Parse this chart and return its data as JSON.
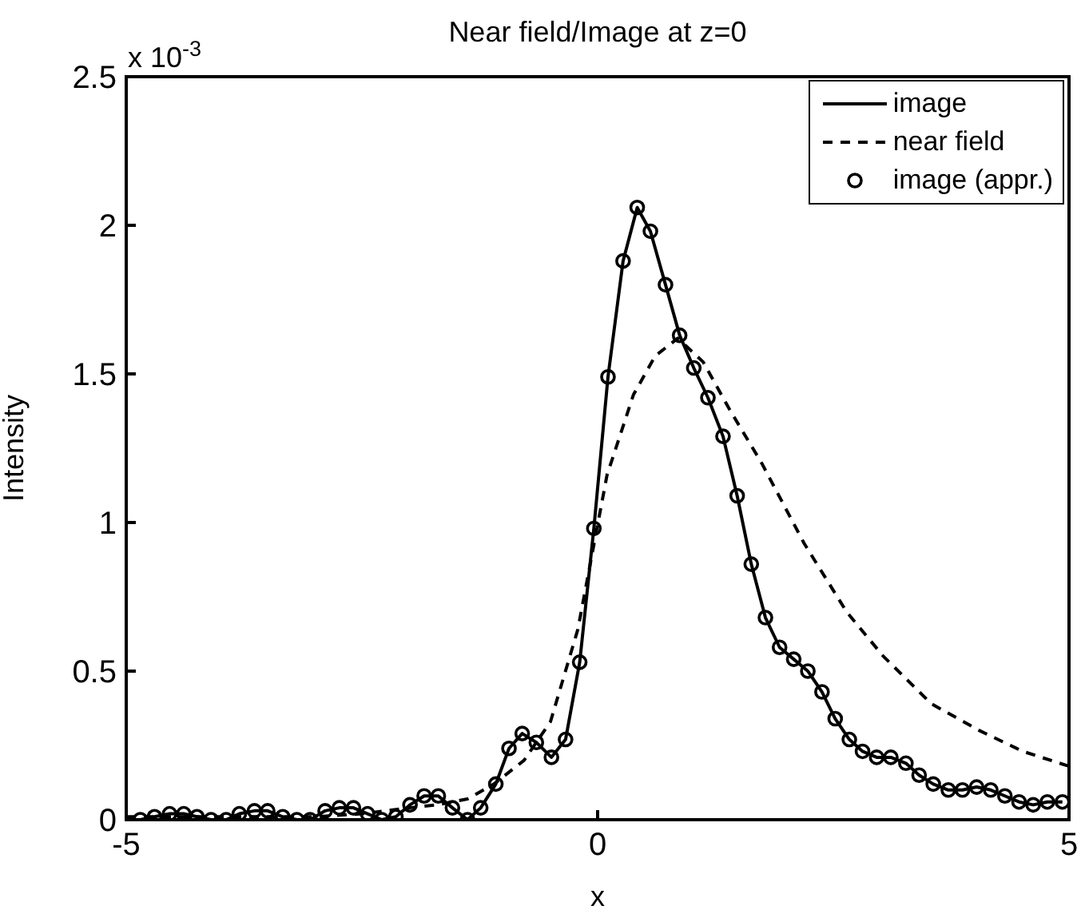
{
  "chart_data": {
    "type": "line",
    "title": "Near field/Image at z=0",
    "xlabel": "x",
    "ylabel": "Intensity",
    "annotations": [
      "x 10$^{-3}$"
    ],
    "xlim": [
      -5,
      5
    ],
    "xticks": [
      -5,
      0,
      5
    ],
    "ylim": [
      0,
      2.5
    ],
    "yticks": [
      0,
      0.5,
      1,
      1.5,
      2,
      2.5
    ],
    "legend": "top right",
    "x": [
      -4.85,
      -4.7,
      -4.54,
      -4.39,
      -4.25,
      -4.1,
      -3.94,
      -3.8,
      -3.64,
      -3.5,
      -3.34,
      -3.19,
      -3.05,
      -2.89,
      -2.74,
      -2.59,
      -2.44,
      -2.29,
      -2.14,
      -1.99,
      -1.84,
      -1.69,
      -1.54,
      -1.38,
      -1.24,
      -1.08,
      -0.94,
      -0.8,
      -0.65,
      -0.49,
      -0.34,
      -0.19,
      -0.04,
      0.11,
      0.27,
      0.42,
      0.56,
      0.72,
      0.87,
      1.02,
      1.17,
      1.33,
      1.48,
      1.63,
      1.78,
      1.93,
      2.08,
      2.23,
      2.38,
      2.52,
      2.67,
      2.81,
      2.96,
      3.11,
      3.27,
      3.41,
      3.56,
      3.72,
      3.87,
      4.02,
      4.17,
      4.32,
      4.47,
      4.62,
      4.77,
      4.93
    ],
    "series": [
      {
        "name": "image",
        "color": "#000000",
        "line_style": "solid",
        "marker": "none",
        "values": [
          0,
          0.01,
          0.02,
          0.02,
          0.01,
          0,
          0,
          0.02,
          0.03,
          0.03,
          0.01,
          0,
          0,
          0.03,
          0.04,
          0.04,
          0.02,
          0,
          0.01,
          0.05,
          0.08,
          0.08,
          0.04,
          0,
          0.04,
          0.12,
          0.24,
          0.29,
          0.26,
          0.21,
          0.27,
          0.53,
          0.98,
          1.49,
          1.88,
          2.06,
          1.98,
          1.8,
          1.63,
          1.52,
          1.42,
          1.29,
          1.09,
          0.86,
          0.68,
          0.58,
          0.54,
          0.5,
          0.43,
          0.34,
          0.27,
          0.23,
          0.21,
          0.21,
          0.19,
          0.15,
          0.12,
          0.1,
          0.1,
          0.11,
          0.1,
          0.08,
          0.06,
          0.05,
          0.06,
          0.06
        ]
      },
      {
        "name": "near field",
        "color": "#000000",
        "line_style": "dashed",
        "marker": "none",
        "x": [
          -5,
          -4,
          -3,
          -2.5,
          -2,
          -1.7,
          -1.38,
          -1.1,
          -0.78,
          -0.5,
          -0.21,
          0.1,
          0.38,
          0.61,
          0.85,
          1.12,
          1.4,
          1.74,
          2.19,
          2.64,
          3.03,
          3.54,
          4.05,
          4.51,
          5
        ],
        "values": [
          0.01,
          0.01,
          0.01,
          0.02,
          0.04,
          0.05,
          0.07,
          0.12,
          0.2,
          0.33,
          0.64,
          1.16,
          1.43,
          1.56,
          1.62,
          1.54,
          1.38,
          1.2,
          0.93,
          0.7,
          0.55,
          0.39,
          0.3,
          0.23,
          0.18
        ]
      },
      {
        "name": "image (appr.)",
        "type": "scatter",
        "color": "#000000",
        "marker": "circle",
        "values": [
          0,
          0.01,
          0.02,
          0.02,
          0.01,
          0,
          0,
          0.02,
          0.03,
          0.03,
          0.01,
          0,
          0,
          0.03,
          0.04,
          0.04,
          0.02,
          0,
          0.01,
          0.05,
          0.08,
          0.08,
          0.04,
          0,
          0.04,
          0.12,
          0.24,
          0.29,
          0.26,
          0.21,
          0.27,
          0.53,
          0.98,
          1.49,
          1.88,
          2.06,
          1.98,
          1.8,
          1.63,
          1.52,
          1.42,
          1.29,
          1.09,
          0.86,
          0.68,
          0.58,
          0.54,
          0.5,
          0.43,
          0.34,
          0.27,
          0.23,
          0.21,
          0.21,
          0.19,
          0.15,
          0.12,
          0.1,
          0.1,
          0.11,
          0.1,
          0.08,
          0.06,
          0.05,
          0.06,
          0.06
        ]
      }
    ]
  }
}
